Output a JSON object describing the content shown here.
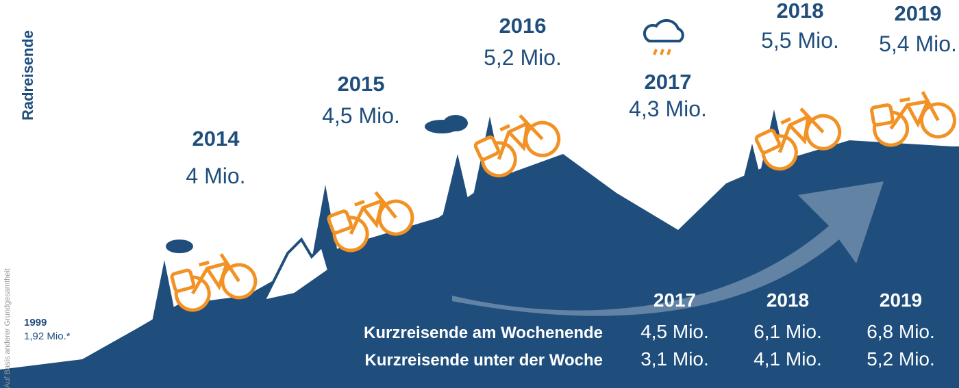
{
  "y_label": "Radreisende",
  "years": [
    {
      "year": "2014",
      "value": "4 Mio."
    },
    {
      "year": "2015",
      "value": "4,5 Mio."
    },
    {
      "year": "2016",
      "value": "5,2 Mio."
    },
    {
      "year": "2017",
      "value": "4,3 Mio."
    },
    {
      "year": "2018",
      "value": "5,5 Mio."
    },
    {
      "year": "2019",
      "value": "5,4 Mio."
    }
  ],
  "start": {
    "year": "1999",
    "value": "1,92 Mio.*"
  },
  "footnote": "Auf Basis anderer Grundgesamtheit",
  "table": {
    "headers": [
      "2017",
      "2018",
      "2019"
    ],
    "rows": [
      {
        "label": "Kurzreisende am Wochenende",
        "values": [
          "4,5 Mio.",
          "6,1 Mio.",
          "6,8 Mio."
        ]
      },
      {
        "label": "Kurzreisende unter der Woche",
        "values": [
          "3,1 Mio.",
          "4,1 Mio.",
          "5,2 Mio."
        ]
      }
    ]
  }
}
